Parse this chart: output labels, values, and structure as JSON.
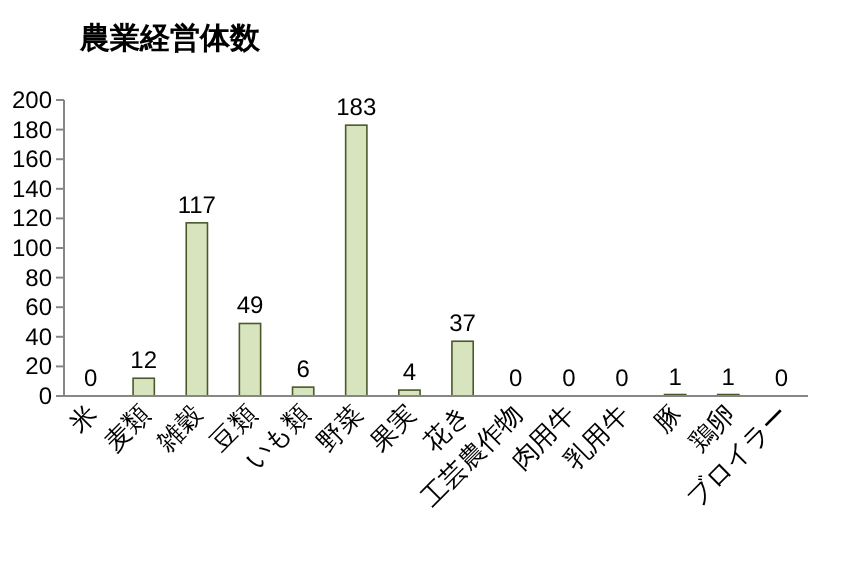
{
  "chart_data": {
    "type": "bar",
    "title": "農業経営体数",
    "categories": [
      "米",
      "麦類",
      "雑穀",
      "豆類",
      "いも類",
      "野菜",
      "果実",
      "花き",
      "工芸農作物",
      "肉用牛",
      "乳用牛",
      "豚",
      "鶏卵",
      "ブロイラー"
    ],
    "values": [
      0,
      12,
      117,
      49,
      6,
      183,
      4,
      37,
      0,
      0,
      0,
      1,
      1,
      0
    ],
    "color": "#d7e4bd",
    "ylim": [
      0,
      200
    ],
    "yticks": [
      0,
      20,
      40,
      60,
      80,
      100,
      120,
      140,
      160,
      180,
      200
    ],
    "data_labels": true
  }
}
